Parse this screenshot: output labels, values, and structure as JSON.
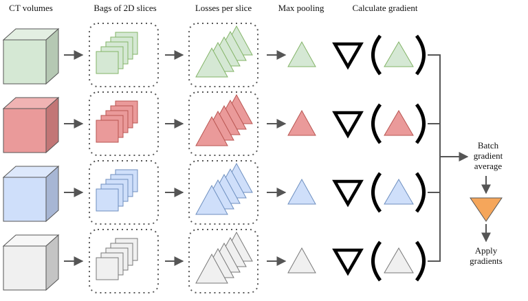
{
  "headers": [
    "CT volumes",
    "Bags of 2D slices",
    "Losses per slice",
    "Max pooling",
    "Calculate gradient"
  ],
  "batch_label": [
    "Batch",
    "gradient",
    "average"
  ],
  "apply_label": [
    "Apply",
    "gradients"
  ]
}
